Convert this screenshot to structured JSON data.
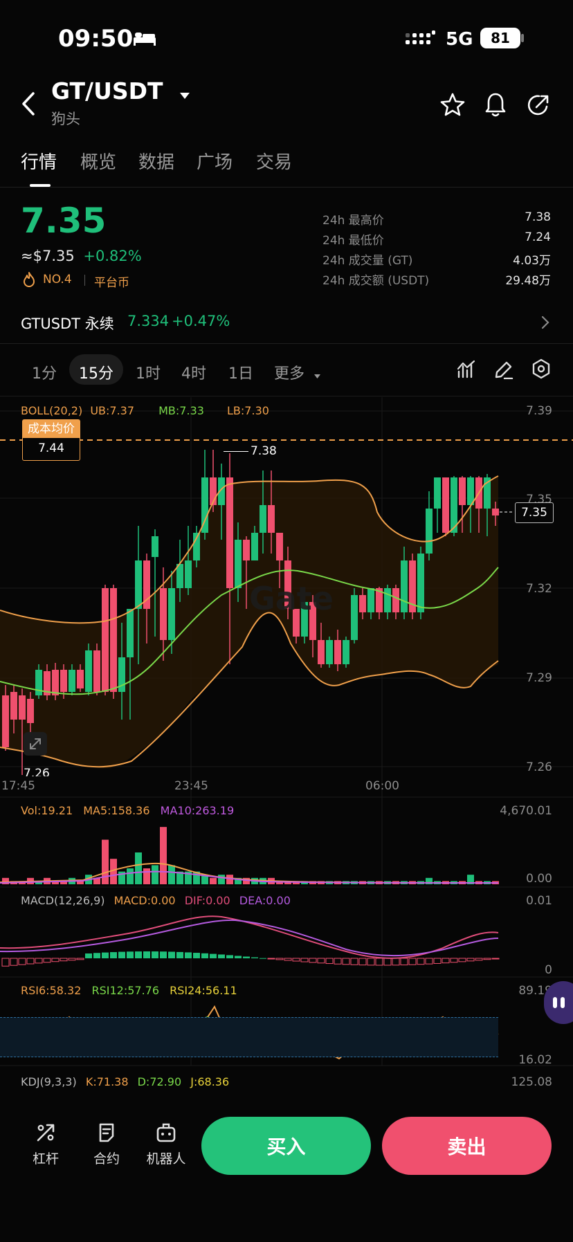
{
  "status_bar": {
    "time": "09:50",
    "network": "5G",
    "battery": "81"
  },
  "header": {
    "pair": "GT/USDT",
    "subtitle": "狗头"
  },
  "tabs": [
    "行情",
    "概览",
    "数据",
    "广场",
    "交易"
  ],
  "price": {
    "last": "7.35",
    "usd": "≈$7.35",
    "change": "+0.82%",
    "rank": "NO.4",
    "tag": "平台币"
  },
  "stats": [
    {
      "label": "24h 最高价",
      "value": "7.38"
    },
    {
      "label": "24h 最低价",
      "value": "7.24"
    },
    {
      "label": "24h 成交量 (GT)",
      "value": "4.03万"
    },
    {
      "label": "24h 成交额 (USDT)",
      "value": "29.48万"
    }
  ],
  "perpetual": {
    "name": "GTUSDT 永续",
    "price": "7.334",
    "change": "+0.47%"
  },
  "timeframes": [
    "1分",
    "15分",
    "1时",
    "4时",
    "1日",
    "更多"
  ],
  "selected_timeframe": "15分",
  "indicators": {
    "boll": {
      "label": "BOLL(20,2)",
      "ub": "UB:7.37",
      "mb": "MB:7.33",
      "lb": "LB:7.30"
    },
    "cost": {
      "label": "成本均价",
      "value": "7.44"
    },
    "vol": {
      "vol": "Vol:19.21",
      "ma5": "MA5:158.36",
      "ma10": "MA10:263.19",
      "top": "4,670.01",
      "bottom": "0.00"
    },
    "macd": {
      "label": "MACD(12,26,9)",
      "macd": "MACD:0.00",
      "dif": "DIF:0.00",
      "dea": "DEA:0.00",
      "top": "0.01",
      "bottom": "0"
    },
    "rsi": {
      "r6": "RSI6:58.32",
      "r12": "RSI12:57.76",
      "r24": "RSI24:56.11",
      "top": "89.19",
      "bottom": "16.02"
    },
    "kdj": {
      "label": "KDJ(9,3,3)",
      "k": "K:71.38",
      "d": "D:72.90",
      "j": "J:68.36",
      "top": "125.08"
    }
  },
  "chart_data": {
    "type": "candlestick",
    "y_ticks": [
      "7.39",
      "7.35",
      "7.32",
      "7.29",
      "7.26"
    ],
    "x_ticks": [
      "17:45",
      "23:45",
      "06:00"
    ],
    "high_marker": "7.38",
    "low_marker": "7.26",
    "current_price_label": "7.35",
    "watermark": "Gate",
    "colors": {
      "up": "#1fbf7a",
      "down": "#f0506e",
      "boll_band": "#f0a04b",
      "mid": "#7ad94a",
      "macd_dif": "#e04d7a",
      "macd_dea": "#b55be0"
    }
  },
  "bottom_bar": {
    "leverage": "杠杆",
    "contract": "合约",
    "robot": "机器人",
    "buy": "买入",
    "sell": "卖出"
  }
}
